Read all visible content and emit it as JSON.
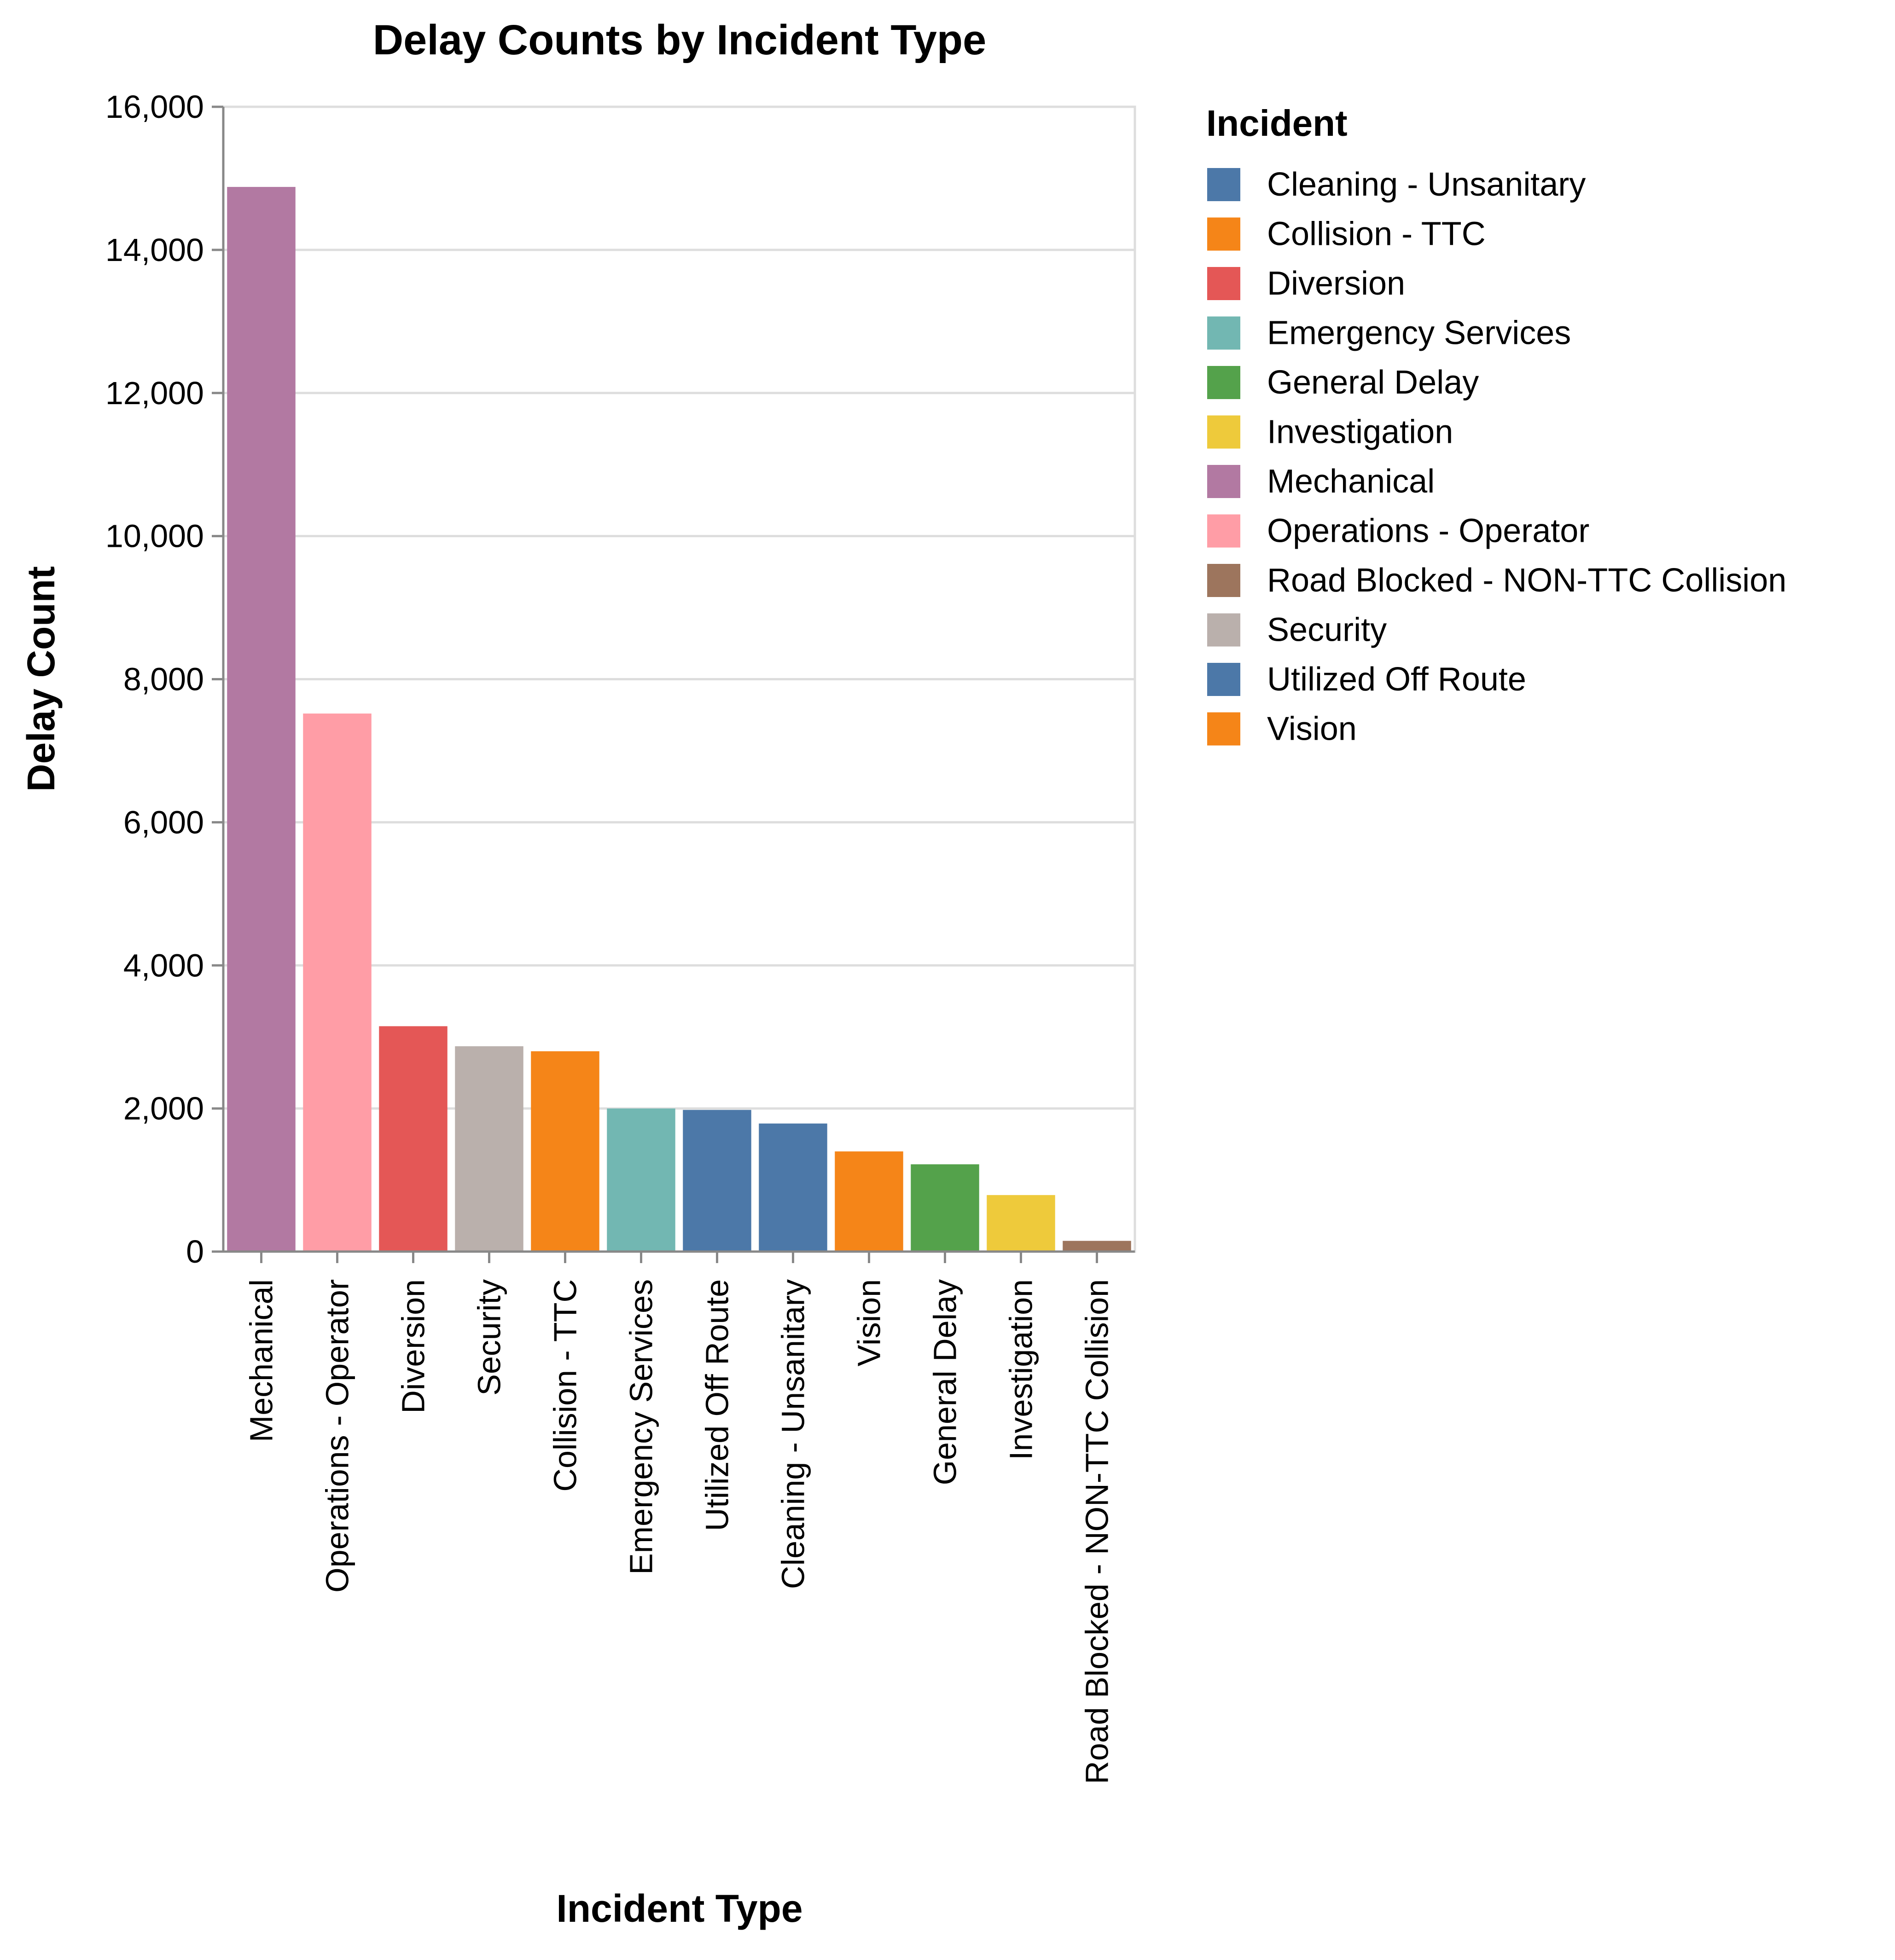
{
  "chart_data": {
    "type": "bar",
    "title": "Delay Counts by Incident Type",
    "xlabel": "Incident Type",
    "ylabel": "Delay Count",
    "ylim": [
      0,
      16000
    ],
    "yticks": [
      0,
      2000,
      4000,
      6000,
      8000,
      10000,
      12000,
      14000,
      16000
    ],
    "ytick_labels": [
      "0",
      "2,000",
      "4,000",
      "6,000",
      "8,000",
      "10,000",
      "12,000",
      "14,000",
      "16,000"
    ],
    "grid": true,
    "categories": [
      "Mechanical",
      "Operations - Operator",
      "Diversion",
      "Security",
      "Collision - TTC",
      "Emergency Services",
      "Utilized Off Route",
      "Cleaning - Unsanitary",
      "Vision",
      "General Delay",
      "Investigation",
      "Road Blocked - NON-TTC Collision"
    ],
    "values": [
      14880,
      7520,
      3150,
      2870,
      2800,
      2000,
      1980,
      1790,
      1400,
      1220,
      790,
      150
    ],
    "bar_colors": [
      "#b279a2",
      "#ff9da6",
      "#e45756",
      "#bab0ac",
      "#f58518",
      "#72b7b2",
      "#4c78a8",
      "#4c78a8",
      "#f58518",
      "#54a24b",
      "#eeca3b",
      "#9d755d"
    ],
    "legend": {
      "title": "Incident",
      "placement": "right",
      "entries": [
        {
          "label": "Cleaning - Unsanitary",
          "color": "#4c78a8"
        },
        {
          "label": "Collision - TTC",
          "color": "#f58518"
        },
        {
          "label": "Diversion",
          "color": "#e45756"
        },
        {
          "label": "Emergency Services",
          "color": "#72b7b2"
        },
        {
          "label": "General Delay",
          "color": "#54a24b"
        },
        {
          "label": "Investigation",
          "color": "#eeca3b"
        },
        {
          "label": "Mechanical",
          "color": "#b279a2"
        },
        {
          "label": "Operations - Operator",
          "color": "#ff9da6"
        },
        {
          "label": "Road Blocked - NON-TTC Collision",
          "color": "#9d755d"
        },
        {
          "label": "Security",
          "color": "#bab0ac"
        },
        {
          "label": "Utilized Off Route",
          "color": "#4c78a8"
        },
        {
          "label": "Vision",
          "color": "#f58518"
        }
      ]
    }
  }
}
